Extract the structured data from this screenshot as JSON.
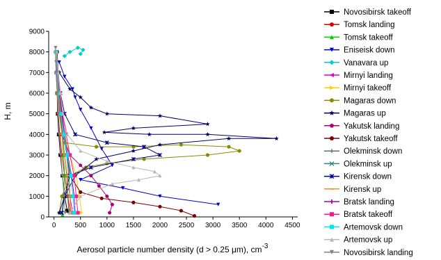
{
  "chart_data": {
    "type": "line",
    "title": "",
    "xlabel": "Aerosol particle number density (d > 0.25 μm), cm",
    "xlabel_sup": "-3",
    "ylabel": "H, m",
    "xlim": [
      -100,
      4600
    ],
    "ylim": [
      0,
      9000
    ],
    "xticks": [
      0,
      500,
      1000,
      1500,
      2000,
      2500,
      3000,
      3500,
      4000,
      4500
    ],
    "yticks": [
      0,
      1000,
      2000,
      3000,
      4000,
      5000,
      6000,
      7000,
      8000,
      9000
    ],
    "grid": false,
    "legend_position": "right",
    "series": [
      {
        "name": "Novosibirsk takeoff",
        "color": "#000000",
        "marker": "square",
        "points": [
          [
            40,
            8000
          ],
          [
            50,
            7000
          ],
          [
            60,
            6000
          ],
          [
            70,
            5000
          ],
          [
            90,
            4000
          ],
          [
            120,
            3000
          ],
          [
            160,
            2000
          ],
          [
            200,
            1000
          ],
          [
            250,
            300
          ]
        ]
      },
      {
        "name": "Tomsk landing",
        "color": "#e00000",
        "marker": "circle",
        "points": [
          [
            30,
            8000
          ],
          [
            40,
            7000
          ],
          [
            60,
            6000
          ],
          [
            80,
            5000
          ],
          [
            110,
            4000
          ],
          [
            150,
            3000
          ],
          [
            200,
            2000
          ],
          [
            260,
            1000
          ],
          [
            310,
            200
          ]
        ]
      },
      {
        "name": "Tomsk takeoff",
        "color": "#00cc00",
        "marker": "triangle",
        "points": [
          [
            30,
            8000
          ],
          [
            40,
            7000
          ],
          [
            60,
            6000
          ],
          [
            100,
            5000
          ],
          [
            150,
            4000
          ],
          [
            180,
            3000
          ],
          [
            200,
            2000
          ],
          [
            180,
            1000
          ],
          [
            160,
            100
          ]
        ]
      },
      {
        "name": "Eniseisk down",
        "color": "#0000cc",
        "marker": "tri-down",
        "points": [
          [
            100,
            7500
          ],
          [
            200,
            6800
          ],
          [
            350,
            6200
          ],
          [
            400,
            5800
          ],
          [
            500,
            5200
          ],
          [
            700,
            4300
          ],
          [
            900,
            3300
          ],
          [
            1100,
            2500
          ],
          [
            500,
            1800
          ],
          [
            1300,
            1400
          ],
          [
            2000,
            1000
          ],
          [
            3100,
            600
          ]
        ]
      },
      {
        "name": "Vanavara up",
        "color": "#00cccc",
        "marker": "diamond",
        "points": [
          [
            200,
            7800
          ],
          [
            300,
            8000
          ],
          [
            450,
            8200
          ],
          [
            550,
            8100
          ],
          [
            500,
            7900
          ]
        ]
      },
      {
        "name": "Mirnyi landing",
        "color": "#dd00dd",
        "marker": "tri-left",
        "points": [
          [
            30,
            8000
          ],
          [
            40,
            7000
          ],
          [
            70,
            6000
          ],
          [
            100,
            5000
          ],
          [
            150,
            4000
          ],
          [
            200,
            3000
          ],
          [
            250,
            2000
          ],
          [
            300,
            1000
          ],
          [
            350,
            200
          ]
        ]
      },
      {
        "name": "Mirnyi takeoff",
        "color": "#ffd000",
        "marker": "tri-right",
        "points": [
          [
            40,
            8000
          ],
          [
            70,
            7000
          ],
          [
            100,
            6000
          ],
          [
            130,
            5000
          ],
          [
            200,
            4000
          ],
          [
            300,
            3000
          ],
          [
            420,
            2000
          ],
          [
            480,
            1000
          ],
          [
            520,
            200
          ]
        ]
      },
      {
        "name": "Magaras down",
        "color": "#8a8a00",
        "marker": "circle",
        "points": [
          [
            200,
            3600
          ],
          [
            800,
            3400
          ],
          [
            1500,
            3400
          ],
          [
            2400,
            3500
          ],
          [
            3300,
            3400
          ],
          [
            3500,
            3200
          ],
          [
            2900,
            3000
          ],
          [
            1700,
            2800
          ],
          [
            1000,
            2600
          ],
          [
            600,
            2400
          ],
          [
            300,
            2000
          ],
          [
            150,
            1000
          ],
          [
            100,
            200
          ]
        ]
      },
      {
        "name": "Magaras up",
        "color": "#000066",
        "marker": "star",
        "points": [
          [
            100,
            7000
          ],
          [
            300,
            6200
          ],
          [
            500,
            5800
          ],
          [
            700,
            5300
          ],
          [
            1000,
            5000
          ],
          [
            2000,
            4900
          ],
          [
            2900,
            4500
          ],
          [
            1500,
            4300
          ],
          [
            950,
            4100
          ],
          [
            1800,
            4000
          ],
          [
            2900,
            4000
          ],
          [
            4200,
            3800
          ],
          [
            3300,
            3800
          ],
          [
            2000,
            3500
          ],
          [
            1500,
            3200
          ],
          [
            800,
            2800
          ],
          [
            400,
            2000
          ],
          [
            200,
            1000
          ],
          [
            100,
            200
          ]
        ]
      },
      {
        "name": "Yakutsk landing",
        "color": "#aa0077",
        "marker": "pentagon",
        "points": [
          [
            50,
            8000
          ],
          [
            80,
            6000
          ],
          [
            150,
            4000
          ],
          [
            300,
            3000
          ],
          [
            500,
            2500
          ],
          [
            700,
            2000
          ],
          [
            850,
            1500
          ],
          [
            1000,
            1000
          ],
          [
            1100,
            600
          ],
          [
            1050,
            200
          ]
        ]
      },
      {
        "name": "Yakutsk takeoff",
        "color": "#800000",
        "marker": "circle",
        "points": [
          [
            60,
            8000
          ],
          [
            100,
            6000
          ],
          [
            200,
            4000
          ],
          [
            300,
            2000
          ],
          [
            500,
            1200
          ],
          [
            900,
            900
          ],
          [
            1500,
            700
          ],
          [
            2000,
            500
          ],
          [
            2400,
            300
          ],
          [
            2650,
            50
          ]
        ]
      },
      {
        "name": "Olekminsk down",
        "color": "#557755",
        "marker": "plus",
        "points": [
          [
            30,
            8000
          ],
          [
            50,
            7000
          ],
          [
            80,
            6000
          ],
          [
            120,
            5000
          ],
          [
            160,
            4000
          ],
          [
            200,
            3000
          ],
          [
            240,
            2000
          ],
          [
            260,
            1000
          ],
          [
            280,
            200
          ]
        ]
      },
      {
        "name": "Olekminsk up",
        "color": "#2a8a80",
        "marker": "x",
        "points": [
          [
            40,
            8000
          ],
          [
            60,
            7000
          ],
          [
            90,
            6000
          ],
          [
            130,
            5000
          ],
          [
            180,
            4000
          ],
          [
            240,
            3000
          ],
          [
            280,
            2000
          ],
          [
            300,
            1000
          ],
          [
            320,
            200
          ]
        ]
      },
      {
        "name": "Kirensk down",
        "color": "#000080",
        "marker": "asterisk",
        "points": [
          [
            50,
            8000
          ],
          [
            80,
            7000
          ],
          [
            120,
            6000
          ],
          [
            200,
            5000
          ],
          [
            400,
            4000
          ],
          [
            1000,
            3600
          ],
          [
            1700,
            3400
          ],
          [
            2000,
            3000
          ],
          [
            1500,
            2800
          ],
          [
            700,
            2400
          ],
          [
            300,
            2000
          ],
          [
            200,
            1000
          ],
          [
            150,
            200
          ]
        ]
      },
      {
        "name": "Kirensk up",
        "color": "#ff8c1a",
        "marker": "dash",
        "points": [
          [
            30,
            8000
          ],
          [
            50,
            7000
          ],
          [
            70,
            6000
          ],
          [
            100,
            5000
          ],
          [
            150,
            4000
          ],
          [
            200,
            3000
          ],
          [
            250,
            2000
          ],
          [
            300,
            1000
          ],
          [
            320,
            200
          ]
        ]
      },
      {
        "name": "Bratsk landing",
        "color": "#aa00aa",
        "marker": "bar",
        "points": [
          [
            40,
            8000
          ],
          [
            60,
            7000
          ],
          [
            90,
            6000
          ],
          [
            140,
            5000
          ],
          [
            200,
            4000
          ],
          [
            260,
            3000
          ],
          [
            330,
            2000
          ],
          [
            380,
            1000
          ],
          [
            400,
            200
          ]
        ]
      },
      {
        "name": "Bratsk takeoff",
        "color": "#ff1493",
        "marker": "square",
        "points": [
          [
            40,
            8000
          ],
          [
            70,
            7000
          ],
          [
            110,
            6000
          ],
          [
            160,
            5000
          ],
          [
            230,
            4000
          ],
          [
            300,
            3000
          ],
          [
            380,
            2000
          ],
          [
            420,
            1000
          ],
          [
            450,
            200
          ]
        ]
      },
      {
        "name": "Artemovsk down",
        "color": "#00e5ee",
        "marker": "square",
        "points": [
          [
            40,
            8000
          ],
          [
            60,
            7000
          ],
          [
            90,
            6000
          ],
          [
            130,
            5000
          ],
          [
            190,
            4000
          ],
          [
            250,
            3000
          ],
          [
            320,
            2000
          ],
          [
            360,
            1000
          ],
          [
            380,
            200
          ]
        ]
      },
      {
        "name": "Artemovsk up",
        "color": "#b8b8b8",
        "marker": "triangle",
        "points": [
          [
            50,
            8000
          ],
          [
            80,
            7000
          ],
          [
            120,
            6000
          ],
          [
            170,
            5000
          ],
          [
            250,
            4000
          ],
          [
            500,
            3200
          ],
          [
            1000,
            2700
          ],
          [
            1500,
            2400
          ],
          [
            1900,
            2200
          ],
          [
            2000,
            2000
          ],
          [
            1600,
            1800
          ],
          [
            1100,
            1600
          ],
          [
            500,
            1000
          ],
          [
            300,
            200
          ]
        ]
      },
      {
        "name": "Novosibirsk landing",
        "color": "#808080",
        "marker": "tri-down",
        "points": [
          [
            30,
            8200
          ],
          [
            40,
            7500
          ],
          [
            50,
            7000
          ],
          [
            60,
            6000
          ],
          [
            80,
            5000
          ],
          [
            100,
            4000
          ],
          [
            130,
            3000
          ],
          [
            160,
            2000
          ],
          [
            190,
            1000
          ],
          [
            210,
            200
          ]
        ]
      }
    ]
  }
}
